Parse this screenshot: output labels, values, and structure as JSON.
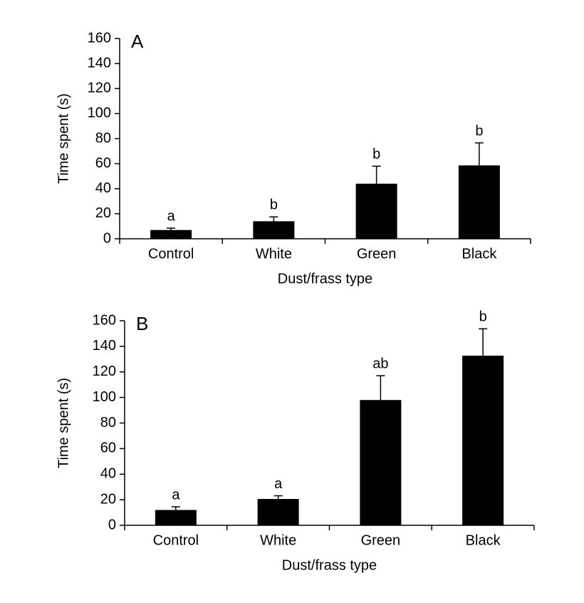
{
  "chart_data": [
    {
      "type": "bar",
      "panel": "A",
      "categories": [
        "Control",
        "White",
        "Green",
        "Black"
      ],
      "values": [
        7,
        14,
        44,
        58.6
      ],
      "errors": [
        1.5,
        3.5,
        14,
        18
      ],
      "annotations": [
        "a",
        "b",
        "b",
        "b"
      ],
      "color": "#000000",
      "x_label": "Dust/frass type",
      "y_label": "Time spent (s)",
      "ylim": [
        0,
        160
      ],
      "yticks": [
        0,
        20,
        40,
        60,
        80,
        100,
        120,
        140,
        160
      ]
    },
    {
      "type": "bar",
      "panel": "B",
      "categories": [
        "Control",
        "White",
        "Green",
        "Black"
      ],
      "values": [
        12,
        20.6,
        98,
        132.7
      ],
      "errors": [
        2.5,
        2.5,
        19,
        21
      ],
      "annotations": [
        "a",
        "a",
        "ab",
        "b"
      ],
      "color": "#000000",
      "x_label": "Dust/frass type",
      "y_label": "Time spent (s)",
      "ylim": [
        0,
        160
      ],
      "yticks": [
        0,
        20,
        40,
        60,
        80,
        100,
        120,
        140,
        160
      ]
    }
  ]
}
